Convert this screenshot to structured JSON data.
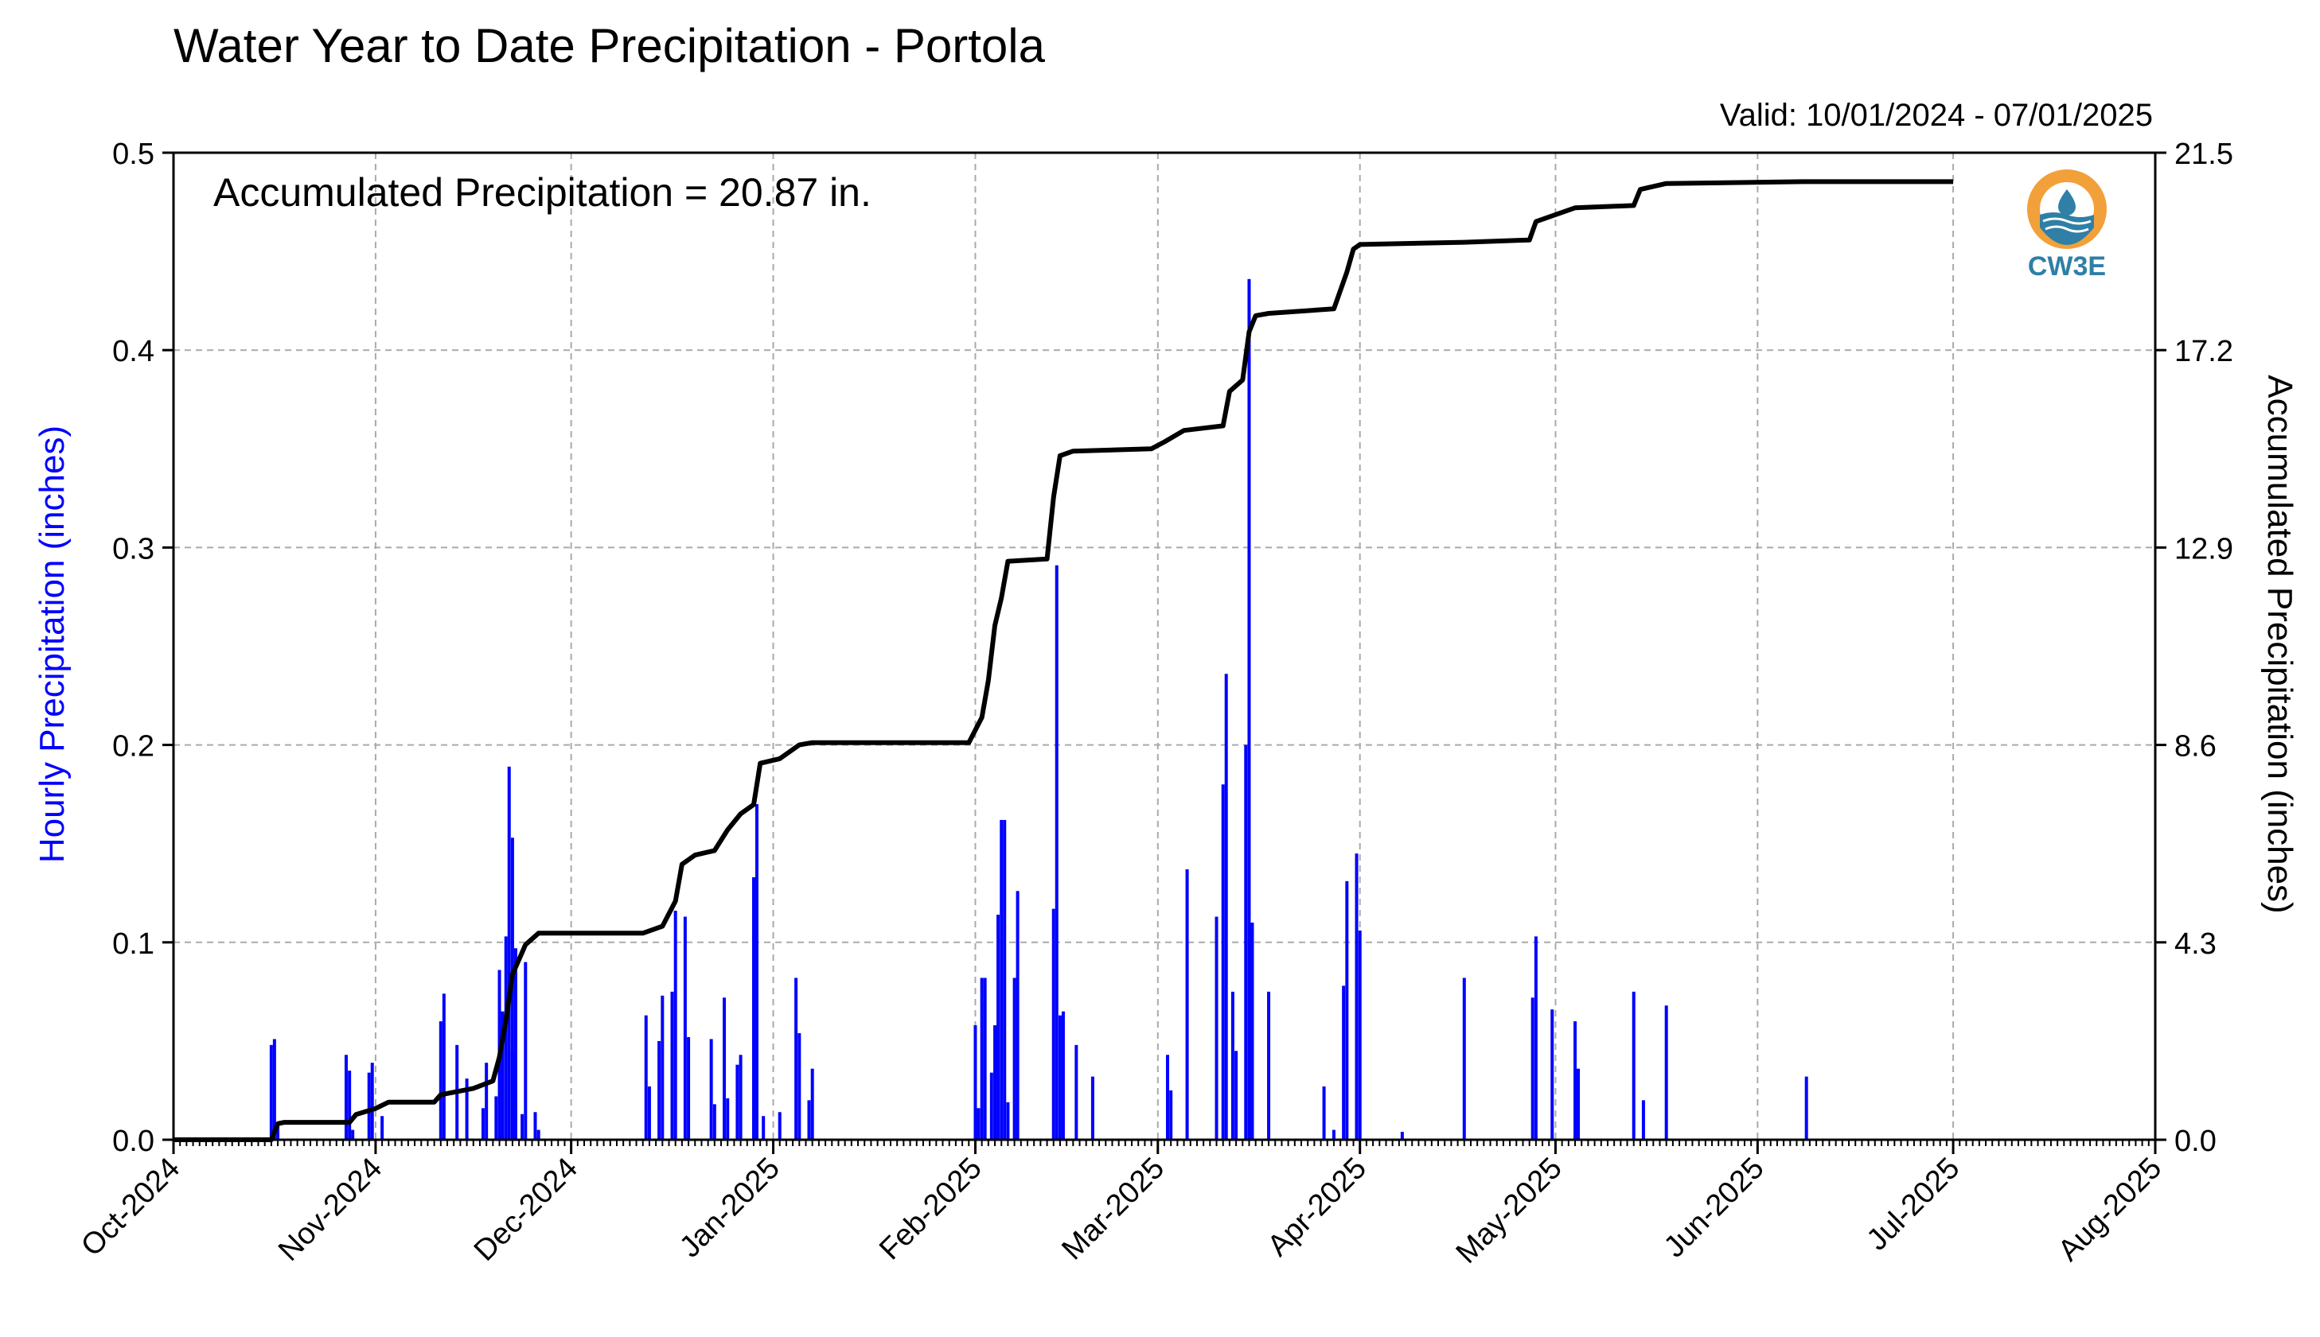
{
  "title": "Water Year to Date Precipitation - Portola",
  "valid_range": "Valid: 10/01/2024 - 07/01/2025",
  "accumulated_label": "Accumulated Precipitation = 20.87 in.",
  "logo": {
    "text": "CW3E",
    "icon": "cw3e-logo-icon",
    "colors": {
      "ring": "#f2a03a",
      "water": "#2f7fa6"
    }
  },
  "colors": {
    "hourly_bars": "#0000ff",
    "accumulated_line": "#000000",
    "grid": "#aaaaaa",
    "left_axis_label": "#0000ff"
  },
  "chart_data": {
    "type": "bar+line",
    "title": "Water Year to Date Precipitation - Portola",
    "xlabel": "",
    "x_range": [
      "2024-10-01",
      "2025-08-01"
    ],
    "x_ticks": [
      "Oct-2024",
      "Nov-2024",
      "Dec-2024",
      "Jan-2025",
      "Feb-2025",
      "Mar-2025",
      "Apr-2025",
      "May-2025",
      "Jun-2025",
      "Jul-2025",
      "Aug-2025"
    ],
    "x_tick_dates": [
      "2024-10-01",
      "2024-11-01",
      "2024-12-01",
      "2025-01-01",
      "2025-02-01",
      "2025-03-01",
      "2025-04-01",
      "2025-05-01",
      "2025-06-01",
      "2025-07-01",
      "2025-08-01"
    ],
    "y_left": {
      "label": "Hourly Precipitation (inches)",
      "range": [
        0,
        0.5
      ],
      "ticks": [
        "0.0",
        "0.1",
        "0.2",
        "0.3",
        "0.4",
        "0.5"
      ]
    },
    "y_right": {
      "label": "Accumulated Precipitation (inches)",
      "range": [
        0,
        21.5
      ],
      "ticks": [
        "0.0",
        "4.3",
        "8.6",
        "12.9",
        "17.2",
        "21.5"
      ]
    },
    "grid": true,
    "series": [
      {
        "name": "Hourly Precipitation",
        "kind": "bar",
        "points": [
          [
            "2024-10-16",
            0.048
          ],
          [
            "2024-10-16",
            0.051
          ],
          [
            "2024-10-17",
            0.007
          ],
          [
            "2024-10-27",
            0.043
          ],
          [
            "2024-10-28",
            0.035
          ],
          [
            "2024-10-28",
            0.005
          ],
          [
            "2024-10-31",
            0.034
          ],
          [
            "2024-10-31",
            0.039
          ],
          [
            "2024-11-02",
            0.012
          ],
          [
            "2024-11-11",
            0.074
          ],
          [
            "2024-11-11",
            0.06
          ],
          [
            "2024-11-13",
            0.048
          ],
          [
            "2024-11-15",
            0.031
          ],
          [
            "2024-11-17",
            0.016
          ],
          [
            "2024-11-18",
            0.039
          ],
          [
            "2024-11-19",
            0.022
          ],
          [
            "2024-11-20",
            0.086
          ],
          [
            "2024-11-20",
            0.065
          ],
          [
            "2024-11-21",
            0.103
          ],
          [
            "2024-11-21",
            0.189
          ],
          [
            "2024-11-22",
            0.153
          ],
          [
            "2024-11-22",
            0.097
          ],
          [
            "2024-11-22",
            0.045
          ],
          [
            "2024-11-23",
            0.013
          ],
          [
            "2024-11-24",
            0.09
          ],
          [
            "2024-11-25",
            0.014
          ],
          [
            "2024-11-26",
            0.005
          ],
          [
            "2024-12-12",
            0.063
          ],
          [
            "2024-12-13",
            0.027
          ],
          [
            "2024-12-14",
            0.05
          ],
          [
            "2024-12-15",
            0.073
          ],
          [
            "2024-12-16",
            0.075
          ],
          [
            "2024-12-17",
            0.116
          ],
          [
            "2024-12-18",
            0.113
          ],
          [
            "2024-12-19",
            0.052
          ],
          [
            "2024-12-22",
            0.051
          ],
          [
            "2024-12-23",
            0.018
          ],
          [
            "2024-12-24",
            0.072
          ],
          [
            "2024-12-25",
            0.021
          ],
          [
            "2024-12-26",
            0.038
          ],
          [
            "2024-12-27",
            0.043
          ],
          [
            "2024-12-29",
            0.17
          ],
          [
            "2024-12-29",
            0.133
          ],
          [
            "2024-12-30",
            0.012
          ],
          [
            "2025-01-02",
            0.014
          ],
          [
            "2025-01-04",
            0.082
          ],
          [
            "2025-01-05",
            0.054
          ],
          [
            "2025-01-06",
            0.02
          ],
          [
            "2025-01-07",
            0.036
          ],
          [
            "2025-02-01",
            0.016
          ],
          [
            "2025-02-01",
            0.058
          ],
          [
            "2025-02-02",
            0.082
          ],
          [
            "2025-02-02",
            0.082
          ],
          [
            "2025-02-03",
            0.034
          ],
          [
            "2025-02-04",
            0.058
          ],
          [
            "2025-02-04",
            0.114
          ],
          [
            "2025-02-05",
            0.162
          ],
          [
            "2025-02-05",
            0.162
          ],
          [
            "2025-02-06",
            0.019
          ],
          [
            "2025-02-07",
            0.126
          ],
          [
            "2025-02-07",
            0.082
          ],
          [
            "2025-02-13",
            0.291
          ],
          [
            "2025-02-13",
            0.117
          ],
          [
            "2025-02-14",
            0.065
          ],
          [
            "2025-02-14",
            0.063
          ],
          [
            "2025-02-16",
            0.048
          ],
          [
            "2025-02-19",
            0.032
          ],
          [
            "2025-03-02",
            0.043
          ],
          [
            "2025-03-03",
            0.025
          ],
          [
            "2025-03-05",
            0.137
          ],
          [
            "2025-03-10",
            0.113
          ],
          [
            "2025-03-11",
            0.236
          ],
          [
            "2025-03-11",
            0.18
          ],
          [
            "2025-03-12",
            0.075
          ],
          [
            "2025-03-13",
            0.045
          ],
          [
            "2025-03-14",
            0.2
          ],
          [
            "2025-03-15",
            0.436
          ],
          [
            "2025-03-15",
            0.11
          ],
          [
            "2025-03-18",
            0.075
          ],
          [
            "2025-03-26",
            0.027
          ],
          [
            "2025-03-28",
            0.005
          ],
          [
            "2025-03-29",
            0.078
          ],
          [
            "2025-03-30",
            0.131
          ],
          [
            "2025-03-31",
            0.145
          ],
          [
            "2025-04-01",
            0.106
          ],
          [
            "2025-04-07",
            0.004
          ],
          [
            "2025-04-17",
            0.082
          ],
          [
            "2025-04-27",
            0.072
          ],
          [
            "2025-04-28",
            0.103
          ],
          [
            "2025-04-30",
            0.066
          ],
          [
            "2025-05-04",
            0.06
          ],
          [
            "2025-05-04",
            0.036
          ],
          [
            "2025-05-13",
            0.075
          ],
          [
            "2025-05-14",
            0.02
          ],
          [
            "2025-05-18",
            0.068
          ],
          [
            "2025-06-08",
            0.032
          ]
        ]
      },
      {
        "name": "Accumulated Precipitation",
        "kind": "line",
        "points": [
          [
            "2024-10-01",
            0.0
          ],
          [
            "2024-10-16",
            0.0
          ],
          [
            "2024-10-17",
            0.35
          ],
          [
            "2024-10-18",
            0.38
          ],
          [
            "2024-10-28",
            0.38
          ],
          [
            "2024-10-29",
            0.55
          ],
          [
            "2024-11-01",
            0.68
          ],
          [
            "2024-11-03",
            0.82
          ],
          [
            "2024-11-10",
            0.82
          ],
          [
            "2024-11-11",
            0.98
          ],
          [
            "2024-11-16",
            1.12
          ],
          [
            "2024-11-19",
            1.28
          ],
          [
            "2024-11-20",
            1.8
          ],
          [
            "2024-11-21",
            2.6
          ],
          [
            "2024-11-22",
            3.6
          ],
          [
            "2024-11-24",
            4.25
          ],
          [
            "2024-11-26",
            4.5
          ],
          [
            "2024-12-12",
            4.5
          ],
          [
            "2024-12-15",
            4.65
          ],
          [
            "2024-12-17",
            5.2
          ],
          [
            "2024-12-18",
            6.0
          ],
          [
            "2024-12-20",
            6.2
          ],
          [
            "2024-12-23",
            6.3
          ],
          [
            "2024-12-25",
            6.75
          ],
          [
            "2024-12-27",
            7.1
          ],
          [
            "2024-12-29",
            7.3
          ],
          [
            "2024-12-30",
            8.2
          ],
          [
            "2025-01-02",
            8.3
          ],
          [
            "2025-01-05",
            8.6
          ],
          [
            "2025-01-07",
            8.65
          ],
          [
            "2025-01-31",
            8.65
          ],
          [
            "2025-02-02",
            9.2
          ],
          [
            "2025-02-03",
            10.0
          ],
          [
            "2025-02-04",
            11.2
          ],
          [
            "2025-02-05",
            11.8
          ],
          [
            "2025-02-06",
            12.6
          ],
          [
            "2025-02-12",
            12.65
          ],
          [
            "2025-02-13",
            14.0
          ],
          [
            "2025-02-14",
            14.9
          ],
          [
            "2025-02-16",
            15.0
          ],
          [
            "2025-02-28",
            15.05
          ],
          [
            "2025-03-02",
            15.2
          ],
          [
            "2025-03-05",
            15.45
          ],
          [
            "2025-03-11",
            15.55
          ],
          [
            "2025-03-12",
            16.3
          ],
          [
            "2025-03-14",
            16.55
          ],
          [
            "2025-03-15",
            17.6
          ],
          [
            "2025-03-16",
            17.95
          ],
          [
            "2025-03-18",
            18.0
          ],
          [
            "2025-03-28",
            18.1
          ],
          [
            "2025-03-30",
            18.9
          ],
          [
            "2025-03-31",
            19.4
          ],
          [
            "2025-04-01",
            19.5
          ],
          [
            "2025-04-17",
            19.55
          ],
          [
            "2025-04-27",
            19.6
          ],
          [
            "2025-04-28",
            20.0
          ],
          [
            "2025-05-01",
            20.15
          ],
          [
            "2025-05-04",
            20.3
          ],
          [
            "2025-05-13",
            20.35
          ],
          [
            "2025-05-14",
            20.7
          ],
          [
            "2025-05-18",
            20.83
          ],
          [
            "2025-06-08",
            20.87
          ],
          [
            "2025-07-01",
            20.87
          ]
        ]
      }
    ]
  }
}
